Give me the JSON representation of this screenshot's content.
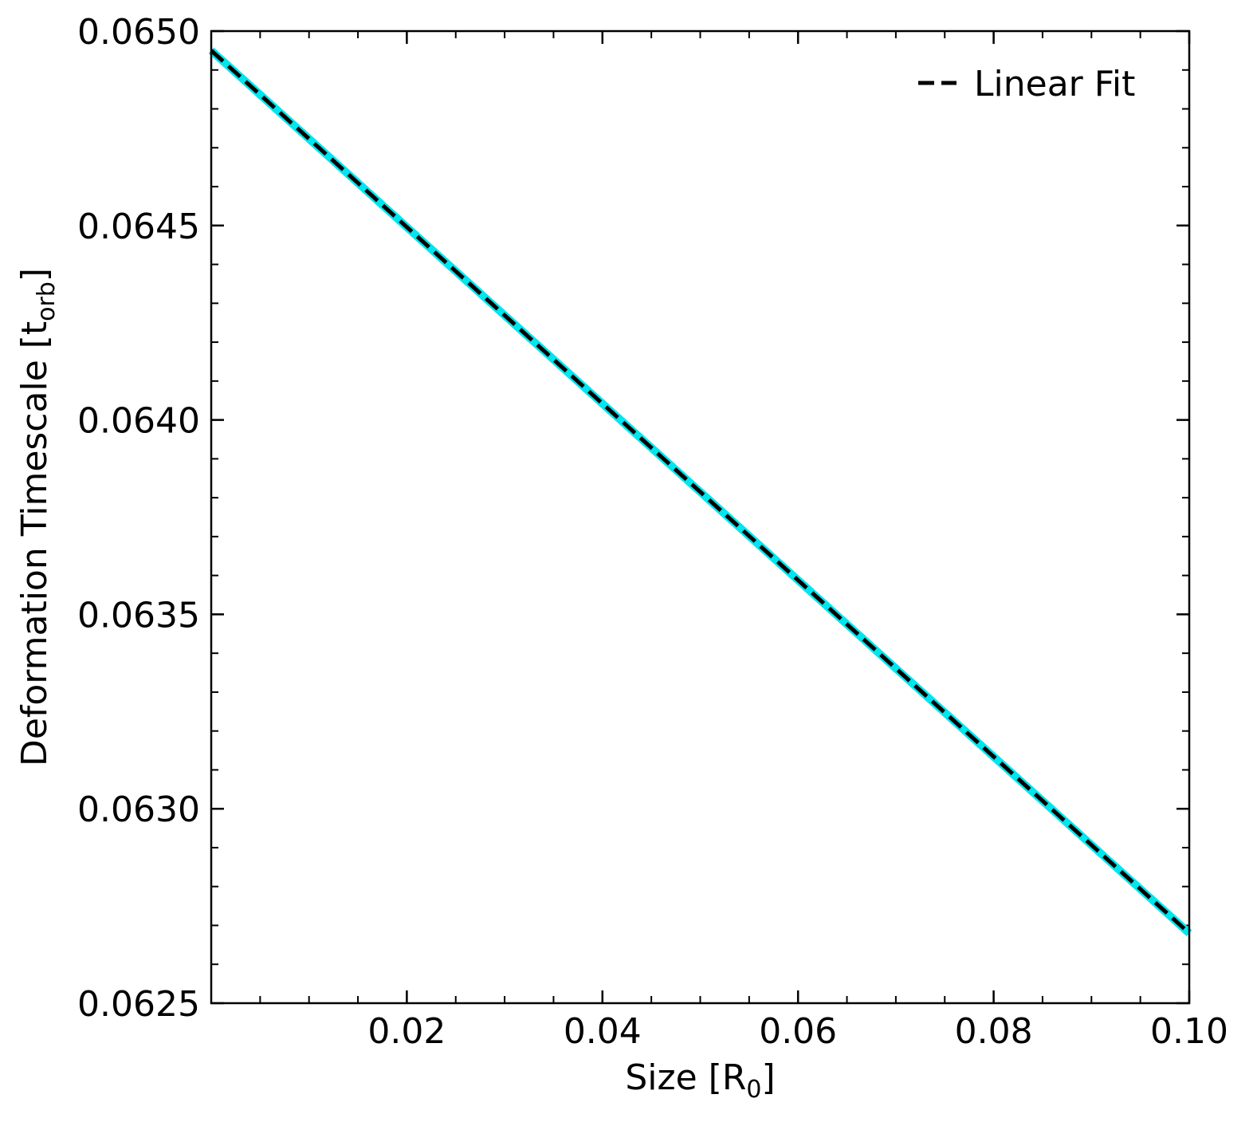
{
  "chart_data": {
    "type": "line",
    "xlabel": {
      "main": "Size [R",
      "sub": "0",
      "close": "]"
    },
    "ylabel": {
      "main": "Deformation Timescale [t",
      "sub": "orb",
      "close": "]"
    },
    "xlim": [
      0.0,
      0.1
    ],
    "ylim": [
      0.0625,
      0.065
    ],
    "xticks": [
      0.02,
      0.04,
      0.06,
      0.08,
      0.1
    ],
    "xtick_labels": [
      "0.02",
      "0.04",
      "0.06",
      "0.08",
      "0.10"
    ],
    "yticks": [
      0.0625,
      0.063,
      0.0635,
      0.064,
      0.0645,
      0.065
    ],
    "ytick_labels": [
      "0.0625",
      "0.0630",
      "0.0635",
      "0.0640",
      "0.0645",
      "0.0650"
    ],
    "x_minor_step": 0.005,
    "y_minor_step": 0.0001,
    "grid": false,
    "legend": {
      "position": "top-right",
      "entries": [
        "Linear Fit"
      ]
    },
    "series": [
      {
        "style": "solid",
        "color": "#00e5ee",
        "x": [
          0.0,
          0.1
        ],
        "y": [
          0.06495,
          0.06268
        ]
      },
      {
        "name": "Linear Fit",
        "style": "dashed",
        "color": "#000000",
        "x": [
          0.0,
          0.1
        ],
        "y": [
          0.06495,
          0.06268
        ]
      }
    ]
  }
}
